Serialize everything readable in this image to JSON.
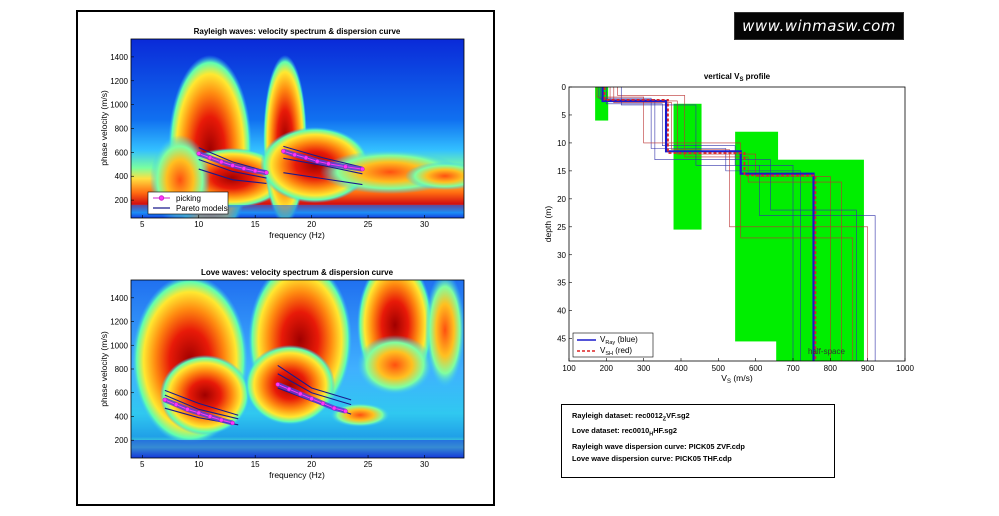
{
  "logo": {
    "text": "www.winmasw.com"
  },
  "chart_data": [
    {
      "type": "heatmap",
      "title": "Rayleigh waves: velocity spectrum & dispersion curve",
      "xlabel": "frequency (Hz)",
      "ylabel": "phase velocity (m/s)",
      "xlim": [
        4,
        33.5
      ],
      "ylim": [
        50,
        1550
      ],
      "xticks": [
        5,
        10,
        15,
        20,
        25,
        30
      ],
      "yticks": [
        200,
        400,
        600,
        800,
        1000,
        1200,
        1400
      ],
      "legend": {
        "position": "bottom-left",
        "entries": [
          "picking",
          "Pareto models"
        ]
      },
      "colors": {
        "picking": "#ff33ff",
        "pareto": "#1a1a8c",
        "legend_marker": "#cc22cc"
      },
      "picking_series": [
        {
          "x": [
            10,
            11,
            12,
            13,
            14,
            15,
            16
          ],
          "y": [
            590,
            555,
            520,
            490,
            465,
            445,
            430
          ]
        },
        {
          "x": [
            17.5,
            18.5,
            19.5,
            20.5,
            21.5,
            23,
            24.5
          ],
          "y": [
            610,
            580,
            555,
            525,
            505,
            480,
            460
          ]
        }
      ],
      "pareto_series": [
        {
          "x": [
            10,
            13,
            16
          ],
          "y": [
            640,
            520,
            440
          ]
        },
        {
          "x": [
            10,
            13,
            16
          ],
          "y": [
            540,
            440,
            385
          ]
        },
        {
          "x": [
            10,
            13,
            16
          ],
          "y": [
            460,
            370,
            340
          ]
        },
        {
          "x": [
            17.5,
            21,
            24.5
          ],
          "y": [
            650,
            555,
            475
          ]
        },
        {
          "x": [
            17.5,
            21,
            24.5
          ],
          "y": [
            550,
            490,
            420
          ]
        },
        {
          "x": [
            17.5,
            21,
            24.5
          ],
          "y": [
            430,
            380,
            330
          ]
        }
      ]
    },
    {
      "type": "heatmap",
      "title": "Love waves: velocity spectrum & dispersion curve",
      "xlabel": "frequency (Hz)",
      "ylabel": "phase velocity (m/s)",
      "xlim": [
        4,
        33.5
      ],
      "ylim": [
        50,
        1550
      ],
      "xticks": [
        5,
        10,
        15,
        20,
        25,
        30
      ],
      "yticks": [
        200,
        400,
        600,
        800,
        1000,
        1200,
        1400
      ],
      "colors": {
        "picking": "#ff33ff",
        "pareto": "#1a1a8c"
      },
      "picking_series": [
        {
          "x": [
            7,
            8,
            9,
            10,
            11,
            12,
            13
          ],
          "y": [
            540,
            500,
            460,
            430,
            400,
            370,
            345
          ]
        },
        {
          "x": [
            17,
            18,
            19,
            20,
            21,
            22,
            23
          ],
          "y": [
            670,
            630,
            590,
            550,
            510,
            470,
            445
          ]
        }
      ],
      "pareto_series": [
        {
          "x": [
            7,
            10,
            13.5
          ],
          "y": [
            620,
            510,
            410
          ]
        },
        {
          "x": [
            7,
            10,
            13.5
          ],
          "y": [
            580,
            460,
            380
          ]
        },
        {
          "x": [
            7,
            10,
            13.5
          ],
          "y": [
            470,
            390,
            330
          ]
        },
        {
          "x": [
            17,
            20,
            23.5
          ],
          "y": [
            830,
            640,
            540
          ]
        },
        {
          "x": [
            17,
            20,
            23.5
          ],
          "y": [
            760,
            600,
            500
          ]
        },
        {
          "x": [
            17,
            20,
            23.5
          ],
          "y": [
            640,
            530,
            420
          ]
        }
      ]
    },
    {
      "type": "line",
      "title_main": "vertical V",
      "title_sub": "S",
      "title_tail": " profile",
      "xlabel_main": "V",
      "xlabel_sub": "S",
      "xlabel_tail": " (m/s)",
      "ylabel": "depth (m)",
      "xlim": [
        100,
        1000
      ],
      "ylim": [
        0,
        49
      ],
      "xticks": [
        100,
        200,
        300,
        400,
        500,
        600,
        700,
        800,
        900,
        1000
      ],
      "yticks": [
        0,
        5,
        10,
        15,
        20,
        25,
        30,
        35,
        40,
        45
      ],
      "annotation": "half-space",
      "legend": {
        "position": "bottom-left",
        "entries": [
          {
            "main": "V",
            "sub": "Ray",
            "tail": " (blue)"
          },
          {
            "main": "V",
            "sub": "SH",
            "tail": " (red)"
          }
        ]
      },
      "colors": {
        "uncertainty": "#00ee00",
        "vray": "#1a1acc",
        "vsh": "#dd2222",
        "models_blue": "#3333aa",
        "models_red": "#bb3333"
      },
      "uncertainty_boxes": [
        {
          "x": [
            170,
            205
          ],
          "y": [
            0,
            6
          ]
        },
        {
          "x": [
            380,
            455
          ],
          "y": [
            3,
            25.5
          ]
        },
        {
          "x": [
            545,
            660
          ],
          "y": [
            8,
            45.5
          ]
        },
        {
          "x": [
            655,
            890
          ],
          "y": [
            13,
            49
          ]
        }
      ],
      "vray_profile": {
        "vs": [
          190,
          360,
          560,
          755
        ],
        "depth": [
          0,
          2.5,
          11.5,
          15.5
        ]
      },
      "vsh_profile": {
        "vs": [
          195,
          365,
          570,
          760
        ],
        "depth": [
          0,
          2.3,
          11.8,
          15.8
        ]
      },
      "model_profiles": [
        {
          "vs": [
            180,
            320,
            520,
            720
          ],
          "depth": [
            0,
            2,
            11,
            15
          ]
        },
        {
          "vs": [
            210,
            390,
            600,
            800
          ],
          "depth": [
            0,
            2.5,
            12,
            16
          ]
        },
        {
          "vs": [
            200,
            350,
            545,
            700
          ],
          "depth": [
            0,
            3,
            10.5,
            14
          ]
        },
        {
          "vs": [
            230,
            410,
            580,
            830
          ],
          "depth": [
            0,
            1.5,
            12.5,
            17
          ]
        },
        {
          "vs": [
            185,
            330,
            640,
            870
          ],
          "depth": [
            0,
            2.2,
            13,
            22
          ]
        },
        {
          "vs": [
            220,
            375,
            530,
            900
          ],
          "depth": [
            0,
            2.8,
            11.2,
            25
          ]
        },
        {
          "vs": [
            240,
            440,
            610,
            920
          ],
          "depth": [
            0,
            3.2,
            14,
            23
          ]
        },
        {
          "vs": [
            175,
            300,
            560,
            860
          ],
          "depth": [
            0,
            1.8,
            10,
            27
          ]
        }
      ]
    }
  ],
  "info": {
    "rayleigh_dataset": {
      "main": "Rayleigh dataset: rec0012",
      "sub": "Z",
      "tail": "VF.sg2"
    },
    "love_dataset": {
      "main": "Love dataset: rec0010",
      "sub": "H",
      "tail": "HF.sg2"
    },
    "rayleigh_curve": "Rayleigh wave dispersion curve: PICK05 ZVF.cdp",
    "love_curve": "Love wave dispersion curve: PICK05 THF.cdp"
  }
}
